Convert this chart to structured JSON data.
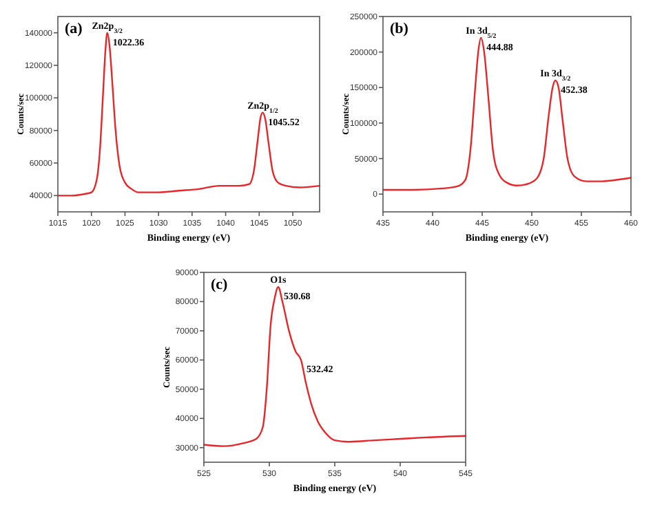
{
  "chart_data": [
    {
      "type": "line",
      "title": "(a)",
      "xlabel": "Binding energy (eV)",
      "ylabel": "Counts/sec",
      "xlim": [
        1015,
        1054
      ],
      "xticks": [
        1015,
        1020,
        1025,
        1030,
        1035,
        1040,
        1045,
        1050
      ],
      "ylim": [
        30000,
        150000
      ],
      "yticks": [
        40000,
        60000,
        80000,
        100000,
        120000,
        140000
      ],
      "series": [
        {
          "color": "#e8262a",
          "x": [
            1015,
            1017,
            1019,
            1020,
            1020.8,
            1021.3,
            1021.7,
            1022.1,
            1022.36,
            1022.7,
            1023.1,
            1023.6,
            1024.2,
            1025,
            1026,
            1027,
            1030,
            1033,
            1036,
            1039,
            1042,
            1043.5,
            1044.2,
            1044.8,
            1045.2,
            1045.52,
            1045.9,
            1046.4,
            1047,
            1047.8,
            1049,
            1051,
            1054
          ],
          "values": [
            40000,
            40000,
            41000,
            42000,
            50000,
            70000,
            100000,
            130000,
            140000,
            132000,
            110000,
            80000,
            58000,
            48000,
            44000,
            42000,
            42000,
            43000,
            44000,
            46000,
            46000,
            47000,
            55000,
            75000,
            88000,
            91000,
            87000,
            72000,
            55000,
            48000,
            46000,
            45000,
            46000
          ]
        }
      ],
      "annotations": [
        {
          "text": "Zn2p$_{3/2}$",
          "x": 1022.36,
          "y": 140000
        },
        {
          "text": "1022.36",
          "x": 1022.36,
          "y": 140000
        },
        {
          "text": "Zn2p$_{1/2}$",
          "x": 1045.52,
          "y": 91000
        },
        {
          "text": "1045.52",
          "x": 1045.52,
          "y": 91000
        }
      ]
    },
    {
      "type": "line",
      "title": "(b)",
      "xlabel": "Binding energy (eV)",
      "ylabel": "Counts/sec",
      "xlim": [
        435,
        460
      ],
      "xticks": [
        435,
        440,
        445,
        450,
        455,
        460
      ],
      "ylim": [
        -25000,
        250000
      ],
      "yticks": [
        0,
        50000,
        100000,
        150000,
        200000,
        250000
      ],
      "series": [
        {
          "color": "#e8262a",
          "x": [
            435,
            438,
            441,
            442.5,
            443.3,
            443.8,
            444.3,
            444.6,
            444.88,
            445.2,
            445.6,
            446.1,
            446.7,
            447.5,
            448.5,
            449.5,
            450.5,
            451.2,
            451.7,
            452.1,
            452.38,
            452.7,
            453.1,
            453.6,
            454.3,
            455.5,
            457,
            459,
            460
          ],
          "values": [
            6000,
            6000,
            8000,
            11000,
            20000,
            60000,
            150000,
            200000,
            220000,
            200000,
            140000,
            60000,
            28000,
            16000,
            12000,
            14000,
            22000,
            50000,
            110000,
            150000,
            160000,
            150000,
            105000,
            50000,
            25000,
            18000,
            18000,
            21000,
            23000
          ]
        }
      ],
      "annotations": [
        {
          "text": "In 3d$_{5/2}$",
          "x": 444.88,
          "y": 220000
        },
        {
          "text": "444.88",
          "x": 444.88,
          "y": 220000
        },
        {
          "text": "In 3d$_{3/2}$",
          "x": 452.38,
          "y": 160000
        },
        {
          "text": "452.38",
          "x": 452.38,
          "y": 160000
        }
      ]
    },
    {
      "type": "line",
      "title": "(c)",
      "xlabel": "Binding energy (eV)",
      "ylabel": "Counts/sec",
      "xlim": [
        525,
        545
      ],
      "xticks": [
        525,
        530,
        535,
        540,
        545
      ],
      "ylim": [
        25000,
        90000
      ],
      "yticks": [
        30000,
        40000,
        50000,
        60000,
        70000,
        80000,
        90000
      ],
      "series": [
        {
          "color": "#e8262a",
          "x": [
            525,
            526.5,
            528,
            529,
            529.5,
            529.8,
            530.1,
            530.4,
            530.68,
            531,
            531.5,
            532,
            532.42,
            532.8,
            533.2,
            533.7,
            534.3,
            535,
            536,
            538,
            540,
            542,
            545
          ],
          "values": [
            31000,
            30500,
            31500,
            33000,
            37000,
            50000,
            72000,
            81000,
            85000,
            80000,
            70000,
            63000,
            60000,
            52000,
            45000,
            39000,
            35000,
            32500,
            32000,
            32500,
            33000,
            33500,
            34000
          ]
        }
      ],
      "annotations": [
        {
          "text": "O1s",
          "x": 530.68,
          "y": 85000
        },
        {
          "text": "530.68",
          "x": 530.68,
          "y": 85000
        },
        {
          "text": "532.42",
          "x": 532.42,
          "y": 60000
        }
      ]
    }
  ]
}
